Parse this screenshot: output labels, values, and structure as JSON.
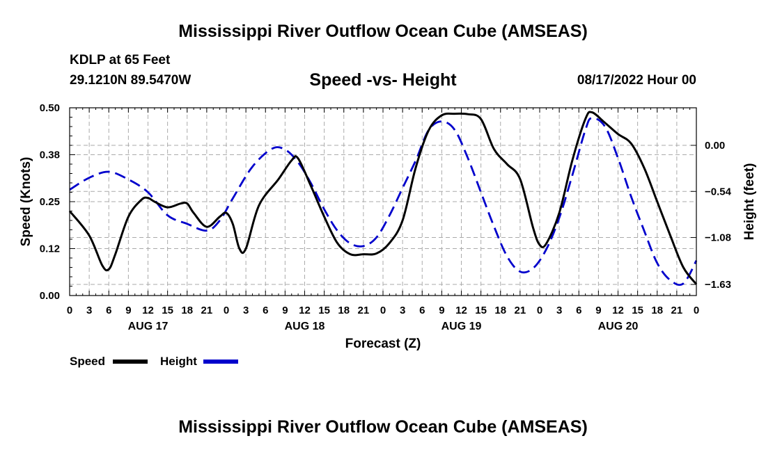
{
  "header": {
    "title": "Mississippi River Outflow Ocean Cube (AMSEAS)",
    "station": "KDLP at 65 Feet",
    "coordinates": "29.1210N  89.5470W",
    "subtitle": "Speed -vs- Height",
    "datetime": "08/17/2022 Hour 00"
  },
  "footer": {
    "title": "Mississippi River Outflow Ocean Cube (AMSEAS)"
  },
  "chart_data": {
    "type": "line",
    "xlabel": "Forecast (Z)",
    "ylabel": "Speed (Knots)",
    "y2label": "Height (feet)",
    "x_unit": "hours from 08/17/2022 00Z",
    "xlim": [
      0,
      96
    ],
    "ylim": [
      0,
      0.5
    ],
    "y2lim": [
      -1.76,
      0.44
    ],
    "x_tick_labels": [
      "0",
      "3",
      "6",
      "9",
      "12",
      "15",
      "18",
      "21",
      "0",
      "3",
      "6",
      "9",
      "12",
      "15",
      "18",
      "21",
      "0",
      "3",
      "6",
      "9",
      "12",
      "15",
      "18",
      "21",
      "0",
      "3",
      "6",
      "9",
      "12",
      "15",
      "18",
      "21",
      "0"
    ],
    "y_ticks": [
      0.0,
      0.125,
      0.25,
      0.375,
      0.5
    ],
    "y_tick_labels": [
      "0.00",
      "0.12",
      "0.25",
      "0.38",
      "0.50"
    ],
    "y2_ticks": [
      0.0,
      -0.54,
      -1.08,
      -1.63
    ],
    "y2_tick_labels": [
      "0.00",
      "-0.54",
      "-1.08",
      "-1.63"
    ],
    "day_labels": [
      {
        "x": 12,
        "label": "AUG 17"
      },
      {
        "x": 36,
        "label": "AUG 18"
      },
      {
        "x": 60,
        "label": "AUG 19"
      },
      {
        "x": 84,
        "label": "AUG 20"
      }
    ],
    "grid": true,
    "legend_position": "bottom-left",
    "colors": {
      "speed": "#000000",
      "height": "#0000cc",
      "grid": "#aaaaaa"
    },
    "series": [
      {
        "name": "Speed",
        "axis": "left",
        "style": "solid",
        "points": [
          [
            0,
            0.225
          ],
          [
            3,
            0.16
          ],
          [
            5,
            0.08
          ],
          [
            6,
            0.07
          ],
          [
            7,
            0.11
          ],
          [
            9,
            0.21
          ],
          [
            11,
            0.255
          ],
          [
            12,
            0.26
          ],
          [
            13,
            0.25
          ],
          [
            15,
            0.235
          ],
          [
            17,
            0.245
          ],
          [
            18,
            0.245
          ],
          [
            19,
            0.22
          ],
          [
            21,
            0.183
          ],
          [
            23,
            0.21
          ],
          [
            24,
            0.22
          ],
          [
            25,
            0.19
          ],
          [
            26,
            0.125
          ],
          [
            27,
            0.125
          ],
          [
            29,
            0.24
          ],
          [
            32,
            0.31
          ],
          [
            34,
            0.36
          ],
          [
            35,
            0.365
          ],
          [
            37,
            0.29
          ],
          [
            39,
            0.21
          ],
          [
            41,
            0.14
          ],
          [
            43,
            0.11
          ],
          [
            45,
            0.11
          ],
          [
            47,
            0.112
          ],
          [
            49,
            0.14
          ],
          [
            51,
            0.2
          ],
          [
            53,
            0.34
          ],
          [
            55,
            0.44
          ],
          [
            57,
            0.48
          ],
          [
            59,
            0.484
          ],
          [
            61,
            0.483
          ],
          [
            63,
            0.47
          ],
          [
            65,
            0.39
          ],
          [
            67,
            0.35
          ],
          [
            69,
            0.31
          ],
          [
            71,
            0.18
          ],
          [
            72,
            0.135
          ],
          [
            73,
            0.138
          ],
          [
            75,
            0.22
          ],
          [
            77,
            0.36
          ],
          [
            79,
            0.47
          ],
          [
            80,
            0.488
          ],
          [
            82,
            0.46
          ],
          [
            84,
            0.43
          ],
          [
            86,
            0.405
          ],
          [
            88,
            0.34
          ],
          [
            90,
            0.25
          ],
          [
            92,
            0.16
          ],
          [
            94,
            0.075
          ],
          [
            96,
            0.03
          ]
        ]
      },
      {
        "name": "Height",
        "axis": "right",
        "style": "dashed",
        "points": [
          [
            0,
            -0.52
          ],
          [
            3,
            -0.38
          ],
          [
            6,
            -0.31
          ],
          [
            9,
            -0.4
          ],
          [
            12,
            -0.55
          ],
          [
            15,
            -0.82
          ],
          [
            18,
            -0.92
          ],
          [
            21,
            -1.0
          ],
          [
            23,
            -0.88
          ],
          [
            25,
            -0.62
          ],
          [
            28,
            -0.25
          ],
          [
            31,
            -0.04
          ],
          [
            33,
            -0.05
          ],
          [
            35,
            -0.2
          ],
          [
            37,
            -0.45
          ],
          [
            39,
            -0.75
          ],
          [
            41,
            -1.0
          ],
          [
            43,
            -1.15
          ],
          [
            45,
            -1.18
          ],
          [
            47,
            -1.08
          ],
          [
            49,
            -0.82
          ],
          [
            51,
            -0.5
          ],
          [
            53,
            -0.18
          ],
          [
            55,
            0.18
          ],
          [
            57,
            0.28
          ],
          [
            59,
            0.18
          ],
          [
            61,
            -0.15
          ],
          [
            63,
            -0.55
          ],
          [
            65,
            -0.95
          ],
          [
            67,
            -1.3
          ],
          [
            69,
            -1.48
          ],
          [
            71,
            -1.44
          ],
          [
            73,
            -1.22
          ],
          [
            75,
            -0.85
          ],
          [
            77,
            -0.35
          ],
          [
            79,
            0.18
          ],
          [
            80,
            0.32
          ],
          [
            82,
            0.22
          ],
          [
            84,
            -0.15
          ],
          [
            86,
            -0.6
          ],
          [
            88,
            -1.0
          ],
          [
            90,
            -1.38
          ],
          [
            92,
            -1.58
          ],
          [
            94,
            -1.62
          ],
          [
            96,
            -1.35
          ]
        ]
      }
    ]
  }
}
